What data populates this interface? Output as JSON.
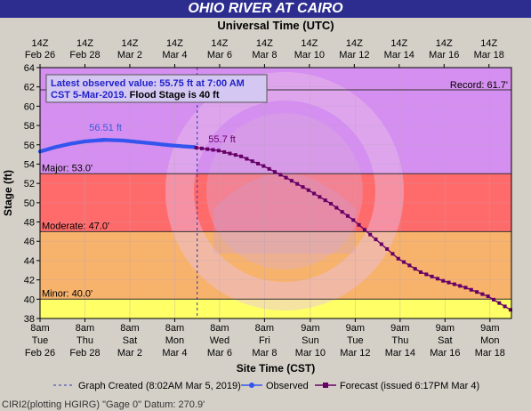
{
  "chart_data": {
    "type": "line",
    "title": "OHIO RIVER AT CAIRO",
    "top_axis_title": "Universal Time (UTC)",
    "xlabel": "Site Time (CST)",
    "ylabel": "Stage (ft)",
    "ylim": [
      38,
      64
    ],
    "yticks": [
      38,
      40,
      42,
      44,
      46,
      48,
      50,
      52,
      54,
      56,
      58,
      60,
      62,
      64
    ],
    "x_start": "2019-02-26T08:00",
    "x_end": "2019-03-19T08:00",
    "top_ticks": [
      {
        "date": "2019-02-26T08:00",
        "l1": "14Z",
        "l2": "Feb 26"
      },
      {
        "date": "2019-02-28T08:00",
        "l1": "14Z",
        "l2": "Feb 28"
      },
      {
        "date": "2019-03-02T08:00",
        "l1": "14Z",
        "l2": "Mar 2"
      },
      {
        "date": "2019-03-04T08:00",
        "l1": "14Z",
        "l2": "Mar 4"
      },
      {
        "date": "2019-03-06T08:00",
        "l1": "14Z",
        "l2": "Mar 6"
      },
      {
        "date": "2019-03-08T08:00",
        "l1": "14Z",
        "l2": "Mar 8"
      },
      {
        "date": "2019-03-10T08:00",
        "l1": "14Z",
        "l2": "Mar 10"
      },
      {
        "date": "2019-03-12T08:00",
        "l1": "14Z",
        "l2": "Mar 12"
      },
      {
        "date": "2019-03-14T08:00",
        "l1": "14Z",
        "l2": "Mar 14"
      },
      {
        "date": "2019-03-16T08:00",
        "l1": "14Z",
        "l2": "Mar 16"
      },
      {
        "date": "2019-03-18T08:00",
        "l1": "14Z",
        "l2": "Mar 18"
      }
    ],
    "bottom_ticks": [
      {
        "date": "2019-02-26T08:00",
        "l1": "8am",
        "l2": "Tue",
        "l3": "Feb 26"
      },
      {
        "date": "2019-02-28T08:00",
        "l1": "8am",
        "l2": "Thu",
        "l3": "Feb 28"
      },
      {
        "date": "2019-03-02T08:00",
        "l1": "8am",
        "l2": "Sat",
        "l3": "Mar 2"
      },
      {
        "date": "2019-03-04T08:00",
        "l1": "8am",
        "l2": "Mon",
        "l3": "Mar 4"
      },
      {
        "date": "2019-03-06T08:00",
        "l1": "8am",
        "l2": "Wed",
        "l3": "Mar 6"
      },
      {
        "date": "2019-03-08T08:00",
        "l1": "8am",
        "l2": "Fri",
        "l3": "Mar 8"
      },
      {
        "date": "2019-03-10T09:00",
        "l1": "9am",
        "l2": "Sun",
        "l3": "Mar 10"
      },
      {
        "date": "2019-03-12T09:00",
        "l1": "9am",
        "l2": "Tue",
        "l3": "Mar 12"
      },
      {
        "date": "2019-03-14T09:00",
        "l1": "9am",
        "l2": "Thu",
        "l3": "Mar 14"
      },
      {
        "date": "2019-03-16T09:00",
        "l1": "9am",
        "l2": "Sat",
        "l3": "Mar 16"
      },
      {
        "date": "2019-03-18T09:00",
        "l1": "9am",
        "l2": "Mon",
        "l3": "Mar 18"
      }
    ],
    "flood_categories": [
      {
        "name": "Record",
        "label": "Record: 61.7'",
        "value": 61.7,
        "color": "#d58ff0"
      },
      {
        "name": "Major",
        "label": "Major: 53.0'",
        "value": 53.0,
        "color": "#ff6b6b"
      },
      {
        "name": "Moderate",
        "label": "Moderate: 47.0'",
        "value": 47.0,
        "color": "#f7b26b"
      },
      {
        "name": "Minor",
        "label": "Minor: 40.0'",
        "value": 40.0,
        "color": "#ffff66"
      }
    ],
    "below_minor_color": "#f0f0f0",
    "info_box": {
      "line1": "Latest observed value: 55.75 ft at 7:00 AM",
      "line2a": "CST 5-Mar-2019.",
      "line2b": "Flood Stage is 40 ft"
    },
    "annotations": [
      {
        "text": "56.51 ft",
        "date": "2019-03-01T06:00",
        "value": 56.51,
        "color": "#3a5bd9"
      },
      {
        "text": "55.7 ft",
        "date": "2019-03-05T20:00",
        "value": 55.7,
        "color": "#660066"
      }
    ],
    "graph_created_date": "2019-03-05T08:02",
    "series": [
      {
        "name": "Observed",
        "color": "#3355ee",
        "points": [
          [
            "2019-02-26T08:00",
            55.3
          ],
          [
            "2019-02-27T00:00",
            55.75
          ],
          [
            "2019-02-27T16:00",
            56.1
          ],
          [
            "2019-02-28T08:00",
            56.35
          ],
          [
            "2019-02-29T00:00",
            56.48
          ],
          [
            "2019-03-01T06:00",
            56.51
          ],
          [
            "2019-03-02T00:00",
            56.45
          ],
          [
            "2019-03-02T16:00",
            56.3
          ],
          [
            "2019-03-03T08:00",
            56.15
          ],
          [
            "2019-03-04T00:00",
            55.98
          ],
          [
            "2019-03-04T16:00",
            55.85
          ],
          [
            "2019-03-05T07:00",
            55.75
          ]
        ]
      },
      {
        "name": "Forecast (issued 6:17PM Mar 4)",
        "color": "#660066",
        "points": [
          [
            "2019-03-05T07:00",
            55.7
          ],
          [
            "2019-03-06T07:00",
            55.4
          ],
          [
            "2019-03-07T07:00",
            54.8
          ],
          [
            "2019-03-08T07:00",
            53.8
          ],
          [
            "2019-03-09T07:00",
            52.6
          ],
          [
            "2019-03-10T07:00",
            51.3
          ],
          [
            "2019-03-11T07:00",
            49.9
          ],
          [
            "2019-03-12T07:00",
            48.2
          ],
          [
            "2019-03-13T07:00",
            46.2
          ],
          [
            "2019-03-14T07:00",
            44.2
          ],
          [
            "2019-03-15T07:00",
            42.8
          ],
          [
            "2019-03-16T07:00",
            41.9
          ],
          [
            "2019-03-17T07:00",
            41.2
          ],
          [
            "2019-03-18T07:00",
            40.3
          ],
          [
            "2019-03-19T07:00",
            38.9
          ]
        ]
      }
    ],
    "legend": {
      "graph_created": "Graph Created (8:02AM Mar 5, 2019)",
      "observed": "Observed",
      "forecast": "Forecast (issued 6:17PM Mar 4)"
    },
    "footer_note": "CIRI2(plotting HGIRG) \"Gage 0\" Datum: 270.9'"
  }
}
